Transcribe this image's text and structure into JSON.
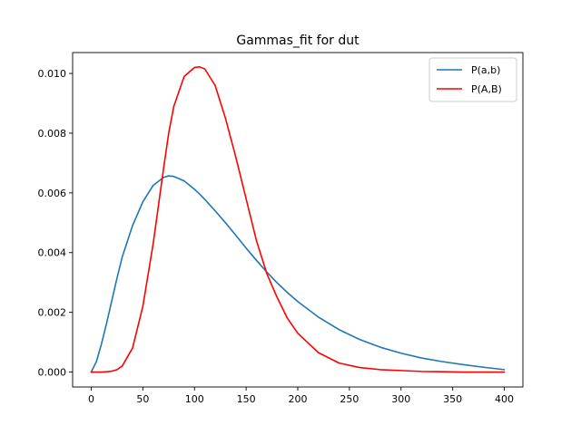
{
  "chart_data": {
    "type": "line",
    "title": "Gammas_fit for dut",
    "xlabel": "",
    "ylabel": "",
    "xlim": [
      -18,
      418
    ],
    "ylim": [
      -0.0005,
      0.0107
    ],
    "x_ticks": [
      0,
      50,
      100,
      150,
      200,
      250,
      300,
      350,
      400
    ],
    "x_tick_labels": [
      "0",
      "50",
      "100",
      "150",
      "200",
      "250",
      "300",
      "350",
      "400"
    ],
    "y_ticks": [
      0.0,
      0.002,
      0.004,
      0.006,
      0.008,
      0.01
    ],
    "y_tick_labels": [
      "0.000",
      "0.002",
      "0.004",
      "0.006",
      "0.008",
      "0.010"
    ],
    "grid": false,
    "legend_position": "top-right",
    "x": [
      0,
      5,
      10,
      15,
      20,
      25,
      30,
      40,
      50,
      60,
      70,
      75,
      80,
      90,
      100,
      105,
      110,
      120,
      130,
      140,
      150,
      160,
      170,
      180,
      190,
      200,
      220,
      240,
      260,
      280,
      300,
      320,
      340,
      360,
      380,
      400
    ],
    "series": [
      {
        "name": "P(a,b)",
        "color": "#1f77b4",
        "values": [
          0.0,
          0.00035,
          0.00095,
          0.00165,
          0.0024,
          0.00315,
          0.00385,
          0.0049,
          0.0057,
          0.00625,
          0.00652,
          0.00657,
          0.00655,
          0.0064,
          0.00612,
          0.00596,
          0.00578,
          0.0054,
          0.005,
          0.00458,
          0.00415,
          0.00374,
          0.00335,
          0.00299,
          0.00266,
          0.00236,
          0.00184,
          0.00142,
          0.00109,
          0.00083,
          0.00063,
          0.00047,
          0.00035,
          0.00025,
          0.00016,
          8e-05
        ]
      },
      {
        "name": "P(A,B)",
        "color": "#ff0000",
        "values": [
          0.0,
          0.0,
          0.0,
          1e-05,
          3e-05,
          8e-05,
          0.0002,
          0.0008,
          0.0022,
          0.0043,
          0.0068,
          0.008,
          0.0089,
          0.0099,
          0.0102,
          0.01022,
          0.01015,
          0.0096,
          0.0085,
          0.0072,
          0.0058,
          0.0044,
          0.0033,
          0.0025,
          0.0018,
          0.0013,
          0.00065,
          0.0003,
          0.00015,
          8e-05,
          5e-05,
          2e-05,
          1e-05,
          0.0,
          0.0,
          0.0
        ]
      }
    ]
  }
}
